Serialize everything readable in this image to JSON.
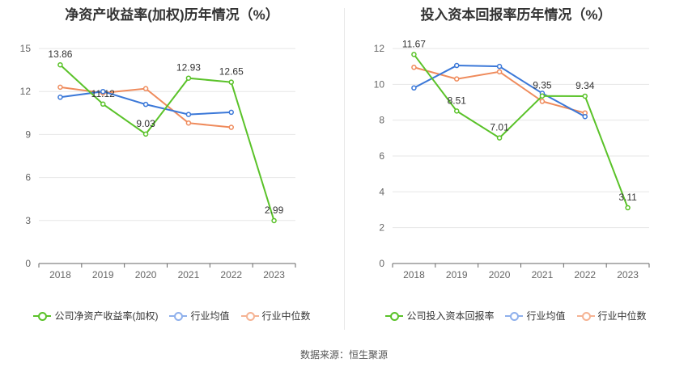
{
  "charts": [
    {
      "legend": {
        "company": "公司净资产收益率(加权)",
        "industry_avg": "行业均值",
        "industry_median": "行业中位数"
      }
    },
    {
      "legend": {
        "company": "公司投入资本回报率",
        "industry_avg": "行业均值",
        "industry_median": "行业中位数"
      }
    }
  ],
  "colors": {
    "company": "#5ac229",
    "industry_avg": "#3b78d8",
    "industry_median": "#ef8b5c"
  },
  "source": "数据来源：恒生聚源",
  "chart_data": [
    {
      "type": "line",
      "title": "净资产收益率(加权)历年情况（%）",
      "categories": [
        "2018",
        "2019",
        "2020",
        "2021",
        "2022",
        "2023"
      ],
      "ylim": [
        0,
        15
      ],
      "yticks": [
        0,
        3,
        6,
        9,
        12,
        15
      ],
      "grid": true,
      "legend_position": "bottom",
      "series": [
        {
          "name": "公司净资产收益率(加权)",
          "values": [
            13.86,
            11.12,
            9.03,
            12.93,
            12.65,
            2.99
          ],
          "labels": [
            "13.86",
            "11.12",
            "9.03",
            "12.93",
            "12.65",
            "2.99"
          ]
        },
        {
          "name": "行业均值",
          "values": [
            11.6,
            12.0,
            11.1,
            10.4,
            10.55,
            null
          ]
        },
        {
          "name": "行业中位数",
          "values": [
            12.3,
            11.9,
            12.2,
            9.8,
            9.5,
            null
          ]
        }
      ]
    },
    {
      "type": "line",
      "title": "投入资本回报率历年情况（%）",
      "categories": [
        "2018",
        "2019",
        "2020",
        "2021",
        "2022",
        "2023"
      ],
      "ylim": [
        0,
        12
      ],
      "yticks": [
        0,
        2,
        4,
        6,
        8,
        10,
        12
      ],
      "grid": true,
      "legend_position": "bottom",
      "series": [
        {
          "name": "公司投入资本回报率",
          "values": [
            11.67,
            8.51,
            7.01,
            9.35,
            9.34,
            3.11
          ],
          "labels": [
            "11.67",
            "8.51",
            "7.01",
            "9.35",
            "9.34",
            "3.11"
          ]
        },
        {
          "name": "行业均值",
          "values": [
            9.8,
            11.05,
            11.0,
            9.5,
            8.2,
            null
          ]
        },
        {
          "name": "行业中位数",
          "values": [
            10.95,
            10.3,
            10.7,
            9.05,
            8.4,
            null
          ]
        }
      ]
    }
  ]
}
